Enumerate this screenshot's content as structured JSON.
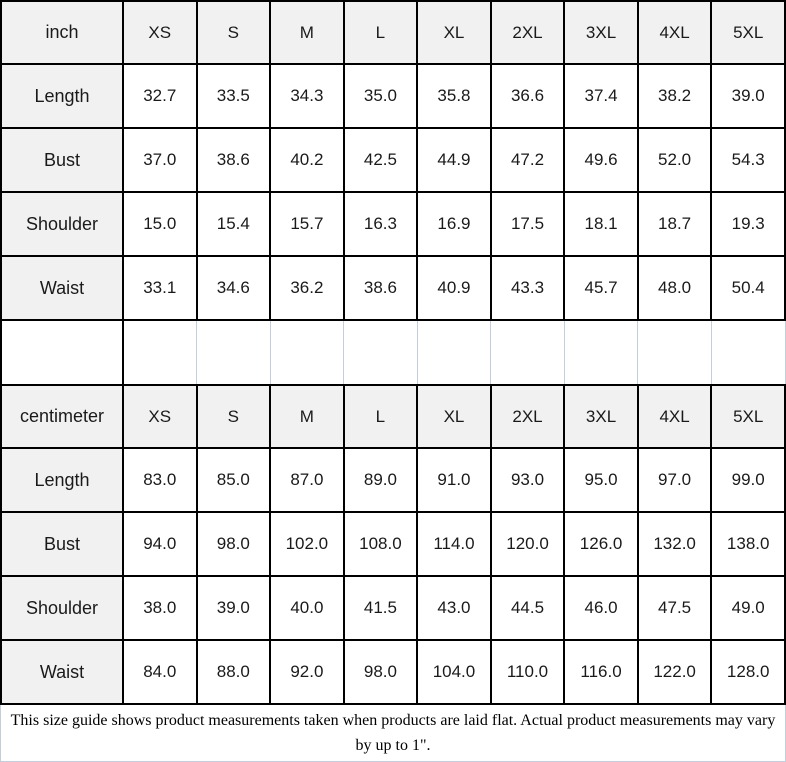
{
  "colors": {
    "header_background": "#f1f1f1",
    "cell_background": "#ffffff",
    "border_dark": "#000000",
    "gridline_light": "#c3cedd",
    "text": "#1a1a1a"
  },
  "chart_data": [
    {
      "type": "table",
      "title": "inch size guide",
      "columns": [
        "inch",
        "XS",
        "S",
        "M",
        "L",
        "XL",
        "2XL",
        "3XL",
        "4XL",
        "5XL"
      ],
      "rows": [
        {
          "label": "Length",
          "values": [
            "32.7",
            "33.5",
            "34.3",
            "35.0",
            "35.8",
            "36.6",
            "37.4",
            "38.2",
            "39.0"
          ]
        },
        {
          "label": "Bust",
          "values": [
            "37.0",
            "38.6",
            "40.2",
            "42.5",
            "44.9",
            "47.2",
            "49.6",
            "52.0",
            "54.3"
          ]
        },
        {
          "label": "Shoulder",
          "values": [
            "15.0",
            "15.4",
            "15.7",
            "16.3",
            "16.9",
            "17.5",
            "18.1",
            "18.7",
            "19.3"
          ]
        },
        {
          "label": "Waist",
          "values": [
            "33.1",
            "34.6",
            "36.2",
            "38.6",
            "40.9",
            "43.3",
            "45.7",
            "48.0",
            "50.4"
          ]
        }
      ]
    },
    {
      "type": "table",
      "title": "centimeter size guide",
      "columns": [
        "centimeter",
        "XS",
        "S",
        "M",
        "L",
        "XL",
        "2XL",
        "3XL",
        "4XL",
        "5XL"
      ],
      "rows": [
        {
          "label": "Length",
          "values": [
            "83.0",
            "85.0",
            "87.0",
            "89.0",
            "91.0",
            "93.0",
            "95.0",
            "97.0",
            "99.0"
          ]
        },
        {
          "label": "Bust",
          "values": [
            "94.0",
            "98.0",
            "102.0",
            "108.0",
            "114.0",
            "120.0",
            "126.0",
            "132.0",
            "138.0"
          ]
        },
        {
          "label": "Shoulder",
          "values": [
            "38.0",
            "39.0",
            "40.0",
            "41.5",
            "43.0",
            "44.5",
            "46.0",
            "47.5",
            "49.0"
          ]
        },
        {
          "label": "Waist",
          "values": [
            "84.0",
            "88.0",
            "92.0",
            "98.0",
            "104.0",
            "110.0",
            "116.0",
            "122.0",
            "128.0"
          ]
        }
      ]
    }
  ],
  "footer": {
    "note": "This size guide shows product measurements taken when products are laid flat. Actual product measurements may vary by up to 1\"."
  }
}
